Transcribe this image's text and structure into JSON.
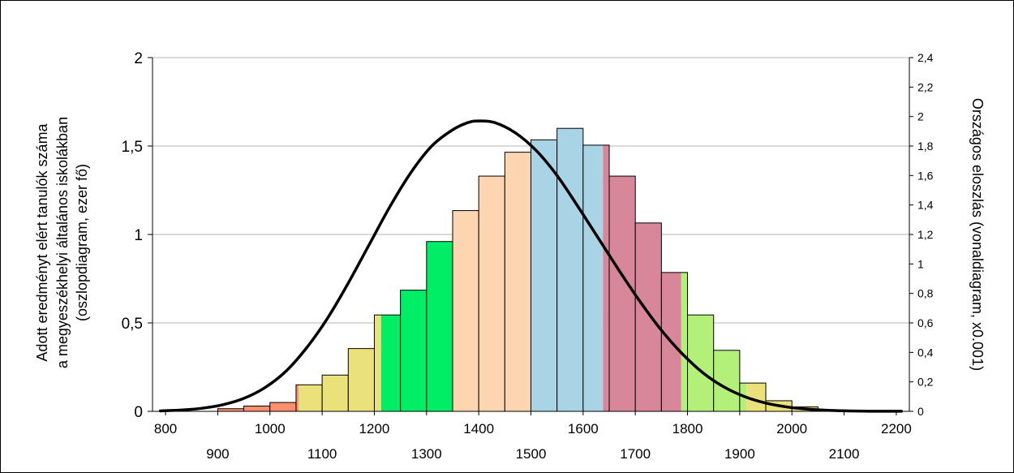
{
  "chart_data": {
    "type": "bar",
    "title": "",
    "ylabel_lines": [
      "Adott eredményt elért tanulók száma",
      "a megyeszékhelyi általános iskolákban",
      "(oszlopdiagram, ezer fő)"
    ],
    "y2label": "Országos eloszlás (vonaldiagram, x0.001)",
    "xlabel": "",
    "xlim": [
      775,
      2225
    ],
    "ylim": [
      0,
      2
    ],
    "y2lim": [
      0,
      2.4
    ],
    "bin_width": 50,
    "y_ticks": [
      {
        "value": 0,
        "label": "0"
      },
      {
        "value": 0.5,
        "label": "0,5"
      },
      {
        "value": 1,
        "label": "1"
      },
      {
        "value": 1.5,
        "label": "1,5"
      },
      {
        "value": 2,
        "label": "2"
      }
    ],
    "y2_ticks": [
      {
        "value": 0,
        "label": "0"
      },
      {
        "value": 0.2,
        "label": "0,2"
      },
      {
        "value": 0.4,
        "label": "0,4"
      },
      {
        "value": 0.6,
        "label": "0,6"
      },
      {
        "value": 0.8,
        "label": "0,8"
      },
      {
        "value": 1.0,
        "label": "1"
      },
      {
        "value": 1.2,
        "label": "1,2"
      },
      {
        "value": 1.4,
        "label": "1,4"
      },
      {
        "value": 1.6,
        "label": "1,6"
      },
      {
        "value": 1.8,
        "label": "1,8"
      },
      {
        "value": 2.0,
        "label": "2"
      },
      {
        "value": 2.2,
        "label": "2,2"
      },
      {
        "value": 2.4,
        "label": "2,4"
      }
    ],
    "x_ticks_top": [
      {
        "value": 800,
        "label": "800"
      },
      {
        "value": 1000,
        "label": "1000"
      },
      {
        "value": 1200,
        "label": "1200"
      },
      {
        "value": 1400,
        "label": "1400"
      },
      {
        "value": 1600,
        "label": "1600"
      },
      {
        "value": 1800,
        "label": "1800"
      },
      {
        "value": 2000,
        "label": "2000"
      },
      {
        "value": 2200,
        "label": "2200"
      }
    ],
    "x_ticks_bottom": [
      {
        "value": 900,
        "label": "900"
      },
      {
        "value": 1100,
        "label": "1100"
      },
      {
        "value": 1300,
        "label": "1300"
      },
      {
        "value": 1500,
        "label": "1500"
      },
      {
        "value": 1700,
        "label": "1700"
      },
      {
        "value": 1900,
        "label": "1900"
      },
      {
        "value": 2100,
        "label": "2100"
      }
    ],
    "bars": [
      {
        "x": 925,
        "value": 0.015,
        "color": "#ff8f6e"
      },
      {
        "x": 975,
        "value": 0.03,
        "color": "#ff8f6e"
      },
      {
        "x": 1025,
        "value": 0.05,
        "color": "#ff8f6e"
      },
      {
        "x": 1075,
        "value": 0.15,
        "color": "#ebe17a",
        "split_color": "#ff8f6e",
        "split_at": 1055
      },
      {
        "x": 1125,
        "value": 0.205,
        "color": "#ebe17a"
      },
      {
        "x": 1175,
        "value": 0.355,
        "color": "#ebe17a"
      },
      {
        "x": 1225,
        "value": 0.545,
        "color": "#00ee66",
        "split_color": "#ebe17a",
        "split_at": 1213
      },
      {
        "x": 1275,
        "value": 0.685,
        "color": "#00ee66"
      },
      {
        "x": 1325,
        "value": 0.96,
        "color": "#00ee66"
      },
      {
        "x": 1375,
        "value": 1.135,
        "color": "#fdd5b1"
      },
      {
        "x": 1425,
        "value": 1.33,
        "color": "#fdd5b1"
      },
      {
        "x": 1475,
        "value": 1.465,
        "color": "#fdd5b1"
      },
      {
        "x": 1525,
        "value": 1.535,
        "color": "#a8d4e6"
      },
      {
        "x": 1575,
        "value": 1.6,
        "color": "#a8d4e6"
      },
      {
        "x": 1625,
        "value": 1.505,
        "color": "#d8869a",
        "split_color": "#a8d4e6",
        "split_at": 1638
      },
      {
        "x": 1675,
        "value": 1.33,
        "color": "#d8869a"
      },
      {
        "x": 1725,
        "value": 1.065,
        "color": "#d8869a"
      },
      {
        "x": 1775,
        "value": 0.785,
        "color": "#b2f07a",
        "split_color": "#d8869a",
        "split_at": 1788
      },
      {
        "x": 1825,
        "value": 0.545,
        "color": "#b2f07a"
      },
      {
        "x": 1875,
        "value": 0.345,
        "color": "#b2f07a"
      },
      {
        "x": 1925,
        "value": 0.16,
        "color": "#ebe17a",
        "split_color": "#b2f07a",
        "split_at": 1913
      },
      {
        "x": 1975,
        "value": 0.06,
        "color": "#ebe17a"
      },
      {
        "x": 2025,
        "value": 0.025,
        "color": "#ebe17a"
      },
      {
        "x": 2075,
        "value": 0.008,
        "color": "#ebe17a"
      }
    ],
    "line": {
      "name": "Országos eloszlás",
      "axis": "y2",
      "color": "#000000",
      "points": [
        [
          790,
          0.003
        ],
        [
          830,
          0.009
        ],
        [
          870,
          0.021
        ],
        [
          910,
          0.045
        ],
        [
          950,
          0.088
        ],
        [
          990,
          0.16
        ],
        [
          1030,
          0.27
        ],
        [
          1070,
          0.43
        ],
        [
          1110,
          0.63
        ],
        [
          1150,
          0.87
        ],
        [
          1190,
          1.13
        ],
        [
          1230,
          1.39
        ],
        [
          1270,
          1.62
        ],
        [
          1310,
          1.8
        ],
        [
          1350,
          1.91
        ],
        [
          1380,
          1.96
        ],
        [
          1400,
          1.97
        ],
        [
          1430,
          1.96
        ],
        [
          1470,
          1.89
        ],
        [
          1510,
          1.77
        ],
        [
          1550,
          1.6
        ],
        [
          1590,
          1.39
        ],
        [
          1630,
          1.17
        ],
        [
          1670,
          0.95
        ],
        [
          1710,
          0.74
        ],
        [
          1750,
          0.55
        ],
        [
          1790,
          0.39
        ],
        [
          1830,
          0.26
        ],
        [
          1870,
          0.165
        ],
        [
          1910,
          0.099
        ],
        [
          1950,
          0.056
        ],
        [
          1990,
          0.03
        ],
        [
          2030,
          0.015
        ],
        [
          2070,
          0.007
        ],
        [
          2110,
          0.003
        ],
        [
          2150,
          0.001
        ],
        [
          2210,
          0.0004
        ]
      ]
    },
    "grid": true
  }
}
